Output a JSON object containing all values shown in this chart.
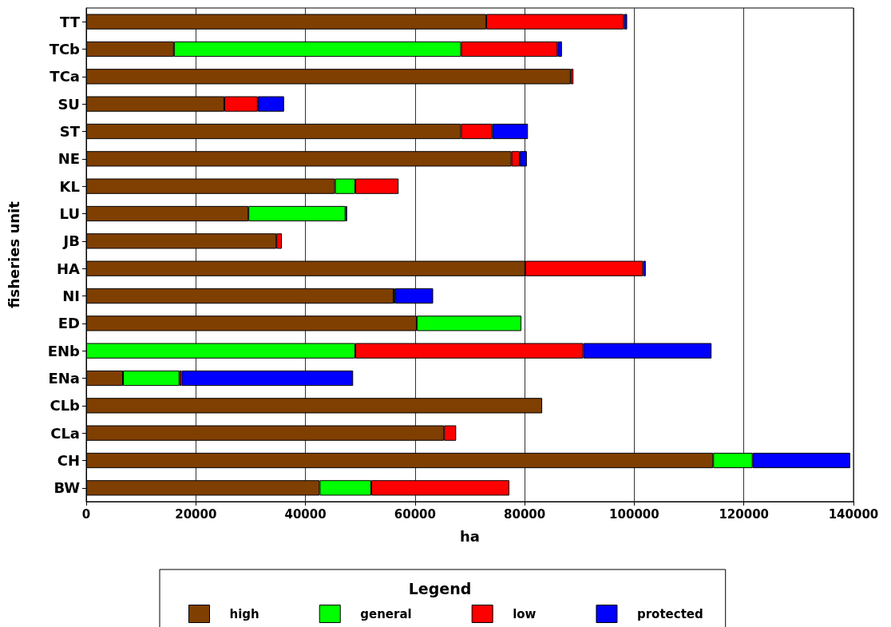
{
  "chart_data": {
    "type": "bar",
    "orientation": "horizontal",
    "stacked": true,
    "xlabel": "ha",
    "ylabel": "fisheries unit",
    "legend_title": "Legend",
    "categories": [
      "TT",
      "TCb",
      "TCa",
      "SU",
      "ST",
      "NE",
      "KL",
      "LU",
      "JB",
      "HA",
      "NI",
      "ED",
      "ENb",
      "ENa",
      "CLb",
      "CLa",
      "CH",
      "BW"
    ],
    "series": [
      {
        "name": "high",
        "color": "#7f3f00",
        "values": [
          73000,
          16000,
          88400,
          25200,
          68400,
          77600,
          45400,
          29600,
          34700,
          80100,
          56100,
          60300,
          0,
          6700,
          83200,
          65300,
          114400,
          42600
        ]
      },
      {
        "name": "general",
        "color": "#00ff00",
        "values": [
          0,
          52400,
          0,
          0,
          0,
          0,
          3700,
          17700,
          0,
          0,
          300,
          19100,
          49100,
          10300,
          0,
          0,
          7200,
          9400
        ]
      },
      {
        "name": "low",
        "color": "#ff0000",
        "values": [
          25100,
          17600,
          500,
          6100,
          5700,
          1500,
          7900,
          0,
          1000,
          21500,
          0,
          0,
          41600,
          400,
          0,
          2200,
          0,
          25200
        ]
      },
      {
        "name": "protected",
        "color": "#0000ff",
        "values": [
          600,
          800,
          0,
          4800,
          6500,
          1300,
          0,
          300,
          0,
          500,
          6900,
          0,
          23400,
          31300,
          0,
          0,
          17800,
          0
        ]
      }
    ],
    "xlim": [
      0,
      140000
    ],
    "xticks": [
      0,
      20000,
      40000,
      60000,
      80000,
      100000,
      120000,
      140000
    ],
    "grid": "x",
    "legend": "bottom"
  }
}
